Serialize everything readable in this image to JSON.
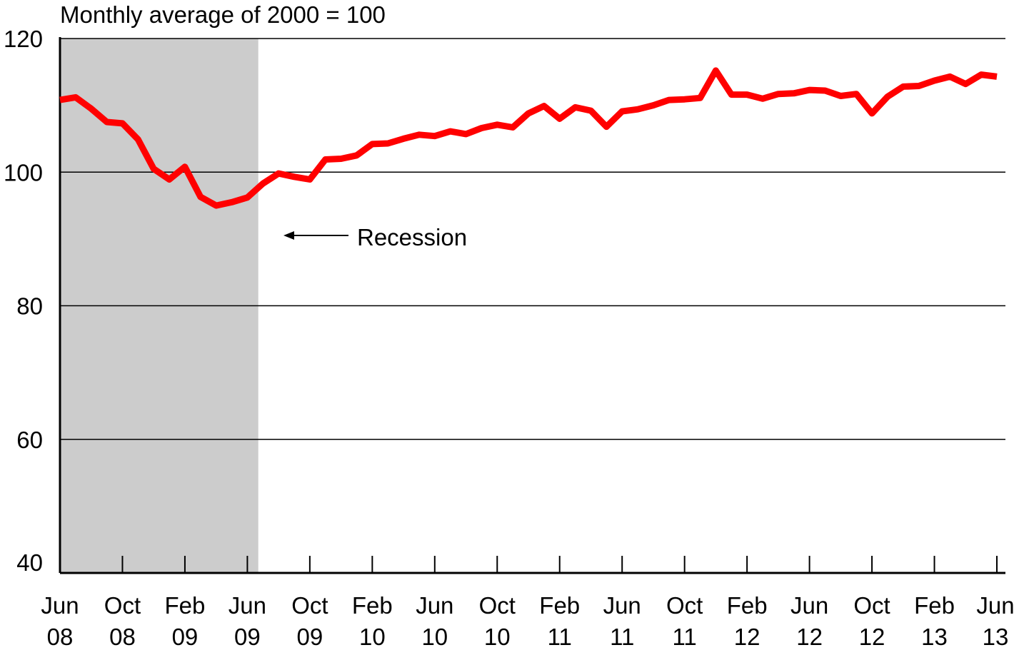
{
  "chart_data": {
    "type": "line",
    "title": "",
    "ylabel": "Monthly average of 2000 = 100",
    "xlabel": "",
    "ylim": [
      40,
      120
    ],
    "yticks": [
      40,
      60,
      80,
      100,
      120
    ],
    "grid": true,
    "x_tick_labels": [
      {
        "month": "Jun",
        "year": "08"
      },
      {
        "month": "Oct",
        "year": "08"
      },
      {
        "month": "Feb",
        "year": "09"
      },
      {
        "month": "Jun",
        "year": "09"
      },
      {
        "month": "Oct",
        "year": "09"
      },
      {
        "month": "Feb",
        "year": "10"
      },
      {
        "month": "Jun",
        "year": "10"
      },
      {
        "month": "Oct",
        "year": "10"
      },
      {
        "month": "Feb",
        "year": "11"
      },
      {
        "month": "Jun",
        "year": "11"
      },
      {
        "month": "Oct",
        "year": "11"
      },
      {
        "month": "Feb",
        "year": "12"
      },
      {
        "month": "Jun",
        "year": "12"
      },
      {
        "month": "Oct",
        "year": "12"
      },
      {
        "month": "Feb",
        "year": "13"
      },
      {
        "month": "Jun",
        "year": "13"
      }
    ],
    "recession": {
      "start": "Jun 08",
      "end": "Jun 09",
      "label": "Recession"
    },
    "series": [
      {
        "line_color": "#ff0000",
        "values": [
          110.8,
          111.2,
          109.5,
          107.5,
          107.3,
          104.9,
          100.5,
          98.9,
          100.8,
          96.3,
          95.0,
          95.5,
          96.2,
          98.3,
          99.8,
          99.3,
          98.9,
          101.9,
          102.0,
          102.5,
          104.2,
          104.3,
          105.0,
          105.6,
          105.4,
          106.1,
          105.7,
          106.6,
          107.1,
          106.7,
          108.8,
          109.9,
          108.0,
          109.7,
          109.2,
          106.8,
          109.1,
          109.4,
          110.0,
          110.8,
          110.9,
          111.1,
          115.2,
          111.6,
          111.6,
          111.0,
          111.7,
          111.8,
          112.3,
          112.2,
          111.4,
          111.7,
          108.8,
          111.3,
          112.8,
          112.9,
          113.7,
          114.3,
          113.2,
          114.6,
          114.3
        ]
      }
    ]
  }
}
